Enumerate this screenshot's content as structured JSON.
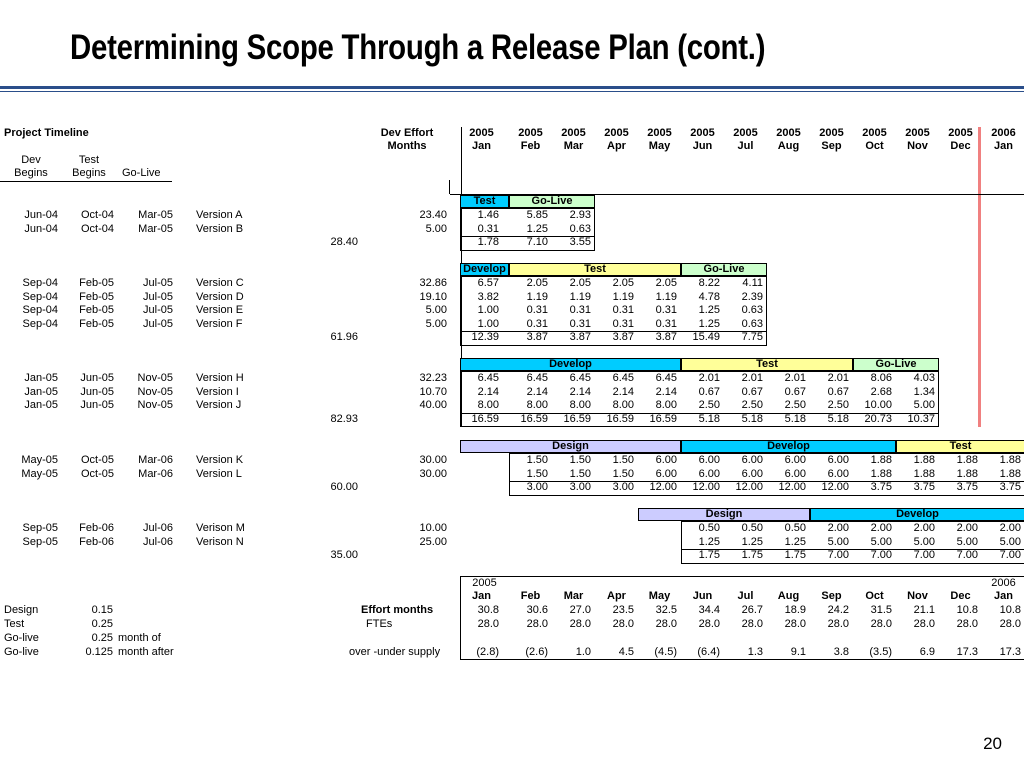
{
  "title": "Determining Scope Through a Release Plan (cont.)",
  "page_number": "20",
  "header": {
    "project_timeline": "Project Timeline",
    "dev_effort": "Dev Effort",
    "months": "Months",
    "dev": "Dev",
    "begins": "Begins",
    "test": "Test",
    "go_live": "Go-Live"
  },
  "month_headers": {
    "years": [
      "2005",
      "2005",
      "2005",
      "2005",
      "2005",
      "2005",
      "2005",
      "2005",
      "2005",
      "2005",
      "2005",
      "2005",
      "2006"
    ],
    "months": [
      "Jan",
      "Feb",
      "Mar",
      "Apr",
      "May",
      "Jun",
      "Jul",
      "Aug",
      "Sep",
      "Oct",
      "Nov",
      "Dec",
      "Jan"
    ]
  },
  "groups": [
    {
      "phases": [
        {
          "label": "Test",
          "start": 0,
          "end": 1,
          "color": "#00ccff"
        },
        {
          "label": "Go-Live",
          "start": 1,
          "end": 3,
          "color": "#ccffcc"
        }
      ],
      "rows": [
        {
          "dev": "Jun-04",
          "test": "Oct-04",
          "golive": "Mar-05",
          "version": "Version A",
          "effort": "23.40",
          "start": 0,
          "vals": [
            "1.46",
            "5.85",
            "2.93"
          ]
        },
        {
          "dev": "Jun-04",
          "test": "Oct-04",
          "golive": "Mar-05",
          "version": "Version B",
          "effort": "5.00",
          "start": 0,
          "vals": [
            "0.31",
            "1.25",
            "0.63"
          ]
        }
      ],
      "total": "28.40",
      "total_start": 0,
      "totals": [
        "1.78",
        "7.10",
        "3.55"
      ]
    },
    {
      "phases": [
        {
          "label": "Develop",
          "start": 0,
          "end": 1,
          "color": "#00ccff"
        },
        {
          "label": "Test",
          "start": 1,
          "end": 5,
          "color": "#ffff99"
        },
        {
          "label": "Go-Live",
          "start": 5,
          "end": 7,
          "color": "#ccffcc"
        }
      ],
      "rows": [
        {
          "dev": "Sep-04",
          "test": "Feb-05",
          "golive": "Jul-05",
          "version": "Version C",
          "effort": "32.86",
          "start": 0,
          "vals": [
            "6.57",
            "2.05",
            "2.05",
            "2.05",
            "2.05",
            "8.22",
            "4.11"
          ]
        },
        {
          "dev": "Sep-04",
          "test": "Feb-05",
          "golive": "Jul-05",
          "version": "Version D",
          "effort": "19.10",
          "start": 0,
          "vals": [
            "3.82",
            "1.19",
            "1.19",
            "1.19",
            "1.19",
            "4.78",
            "2.39"
          ]
        },
        {
          "dev": "Sep-04",
          "test": "Feb-05",
          "golive": "Jul-05",
          "version": "Version E",
          "effort": "5.00",
          "start": 0,
          "vals": [
            "1.00",
            "0.31",
            "0.31",
            "0.31",
            "0.31",
            "1.25",
            "0.63"
          ]
        },
        {
          "dev": "Sep-04",
          "test": "Feb-05",
          "golive": "Jul-05",
          "version": "Version F",
          "effort": "5.00",
          "start": 0,
          "vals": [
            "1.00",
            "0.31",
            "0.31",
            "0.31",
            "0.31",
            "1.25",
            "0.63"
          ]
        }
      ],
      "total": "61.96",
      "total_start": 0,
      "totals": [
        "12.39",
        "3.87",
        "3.87",
        "3.87",
        "3.87",
        "15.49",
        "7.75"
      ]
    },
    {
      "phases": [
        {
          "label": "Develop",
          "start": 0,
          "end": 5,
          "color": "#00ccff"
        },
        {
          "label": "Test",
          "start": 5,
          "end": 9,
          "color": "#ffff99"
        },
        {
          "label": "Go-Live",
          "start": 9,
          "end": 11,
          "color": "#ccffcc"
        }
      ],
      "rows": [
        {
          "dev": "Jan-05",
          "test": "Jun-05",
          "golive": "Nov-05",
          "version": "Version H",
          "effort": "32.23",
          "start": 0,
          "vals": [
            "6.45",
            "6.45",
            "6.45",
            "6.45",
            "6.45",
            "2.01",
            "2.01",
            "2.01",
            "2.01",
            "8.06",
            "4.03"
          ]
        },
        {
          "dev": "Jan-05",
          "test": "Jun-05",
          "golive": "Nov-05",
          "version": "Version I",
          "effort": "10.70",
          "start": 0,
          "vals": [
            "2.14",
            "2.14",
            "2.14",
            "2.14",
            "2.14",
            "0.67",
            "0.67",
            "0.67",
            "0.67",
            "2.68",
            "1.34"
          ]
        },
        {
          "dev": "Jan-05",
          "test": "Jun-05",
          "golive": "Nov-05",
          "version": "Version J",
          "effort": "40.00",
          "start": 0,
          "vals": [
            "8.00",
            "8.00",
            "8.00",
            "8.00",
            "8.00",
            "2.50",
            "2.50",
            "2.50",
            "2.50",
            "10.00",
            "5.00"
          ]
        }
      ],
      "total": "82.93",
      "total_start": 0,
      "totals": [
        "16.59",
        "16.59",
        "16.59",
        "16.59",
        "16.59",
        "5.18",
        "5.18",
        "5.18",
        "5.18",
        "20.73",
        "10.37"
      ]
    },
    {
      "phases": [
        {
          "label": "Design",
          "start": 0,
          "end": 5,
          "color": "#ccccff"
        },
        {
          "label": "Develop",
          "start": 5,
          "end": 10,
          "color": "#00ccff"
        },
        {
          "label": "Test",
          "start": 10,
          "end": 13,
          "color": "#ffff99"
        }
      ],
      "rows": [
        {
          "dev": "May-05",
          "test": "Oct-05",
          "golive": "Mar-06",
          "version": "Version K",
          "effort": "30.00",
          "start": 1,
          "vals": [
            "1.50",
            "1.50",
            "1.50",
            "6.00",
            "6.00",
            "6.00",
            "6.00",
            "6.00",
            "1.88",
            "1.88",
            "1.88",
            "1.88"
          ]
        },
        {
          "dev": "May-05",
          "test": "Oct-05",
          "golive": "Mar-06",
          "version": "Version L",
          "effort": "30.00",
          "start": 1,
          "vals": [
            "1.50",
            "1.50",
            "1.50",
            "6.00",
            "6.00",
            "6.00",
            "6.00",
            "6.00",
            "1.88",
            "1.88",
            "1.88",
            "1.88"
          ]
        }
      ],
      "total": "60.00",
      "total_start": 1,
      "totals": [
        "3.00",
        "3.00",
        "3.00",
        "12.00",
        "12.00",
        "12.00",
        "12.00",
        "12.00",
        "3.75",
        "3.75",
        "3.75",
        "3.75"
      ]
    },
    {
      "phases": [
        {
          "label": "Design",
          "start": 4,
          "end": 8,
          "color": "#ccccff"
        },
        {
          "label": "Develop",
          "start": 8,
          "end": 13,
          "color": "#00ccff"
        }
      ],
      "rows": [
        {
          "dev": "Sep-05",
          "test": "Feb-06",
          "golive": "Jul-06",
          "version": "Verison M",
          "effort": "10.00",
          "start": 5,
          "vals": [
            "0.50",
            "0.50",
            "0.50",
            "2.00",
            "2.00",
            "2.00",
            "2.00",
            "2.00"
          ]
        },
        {
          "dev": "Sep-05",
          "test": "Feb-06",
          "golive": "Jul-06",
          "version": "Verison N",
          "effort": "25.00",
          "start": 5,
          "vals": [
            "1.25",
            "1.25",
            "1.25",
            "5.00",
            "5.00",
            "5.00",
            "5.00",
            "5.00"
          ]
        }
      ],
      "total": "35.00",
      "total_start": 5,
      "totals": [
        "1.75",
        "1.75",
        "1.75",
        "7.00",
        "7.00",
        "7.00",
        "7.00",
        "7.00"
      ]
    }
  ],
  "summary": {
    "year_first": "2005",
    "year_last": "2006",
    "months": [
      "Jan",
      "Feb",
      "Mar",
      "Apr",
      "May",
      "Jun",
      "Jul",
      "Aug",
      "Sep",
      "Oct",
      "Nov",
      "Dec",
      "Jan"
    ],
    "effort_label": "Effort months",
    "effort": [
      "30.8",
      "30.6",
      "27.0",
      "23.5",
      "32.5",
      "34.4",
      "26.7",
      "18.9",
      "24.2",
      "31.5",
      "21.1",
      "10.8",
      "10.8"
    ],
    "ftes_label": "FTEs",
    "ftes": [
      "28.0",
      "28.0",
      "28.0",
      "28.0",
      "28.0",
      "28.0",
      "28.0",
      "28.0",
      "28.0",
      "28.0",
      "28.0",
      "28.0",
      "28.0"
    ],
    "over_label": "over -under supply",
    "over": [
      "(2.8)",
      "(2.6)",
      "1.0",
      "4.5",
      "(4.5)",
      "(6.4)",
      "1.3",
      "9.1",
      "3.8",
      "(3.5)",
      "6.9",
      "17.3",
      "17.3"
    ]
  },
  "params": [
    {
      "label": "Design",
      "value": "0.15",
      "note": ""
    },
    {
      "label": "Test",
      "value": "0.25",
      "note": ""
    },
    {
      "label": "Go-live",
      "value": "0.25",
      "note": "month of"
    },
    {
      "label": "Go-live",
      "value": "0.125",
      "note": "month after"
    }
  ]
}
